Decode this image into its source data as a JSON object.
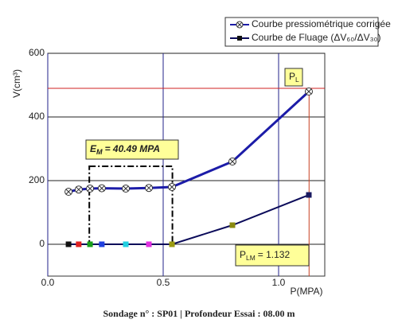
{
  "chart_data": {
    "type": "line",
    "x": [
      0.09,
      0.134,
      0.183,
      0.234,
      0.338,
      0.438,
      0.538,
      0.8,
      1.131
    ],
    "series": [
      {
        "name": "Courbe pressiométrique corrigée",
        "color": "#1c1ca8",
        "values": [
          165,
          172,
          175,
          176,
          175,
          177,
          180,
          260,
          480
        ]
      },
      {
        "name": "Courbe de Fluage (ΔV₆₀/ΔV₃₀)",
        "color": "#0b0b5a",
        "values": [
          0,
          0,
          0,
          0,
          0,
          0,
          0,
          60,
          155
        ],
        "marker_colors": [
          "#111111",
          "#e02020",
          "#1aa01a",
          "#2040e0",
          "#20d0e0",
          "#e030e0",
          "#9a9a10",
          "#8a8a10",
          "#1a1a60"
        ]
      }
    ],
    "xlim": [
      0,
      1.2
    ],
    "ylim": [
      -100,
      600
    ],
    "xticks": [
      {
        "value": 0,
        "label": "0.0"
      },
      0.5,
      {
        "value": 1,
        "label": "1.0"
      }
    ],
    "yticks": [
      0,
      200,
      400,
      600
    ],
    "xlabel": "P(MPA)",
    "ylabel": "V(cm³)",
    "pl_line": 490,
    "plm_line": 1.132,
    "em_box": {
      "x": [
        0.18,
        0.54
      ],
      "y": [
        0,
        245
      ]
    },
    "annotations": {
      "em": {
        "main": "E",
        "sub": "M",
        "rest": "= 40.49 MPA"
      },
      "pl": {
        "main": "P",
        "sub": "L"
      },
      "plm": {
        "main": "P",
        "sub": "LM",
        "rest": "= 1.132"
      }
    },
    "grid": true,
    "footer": "Sondage n° : SP01 | Profondeur Essai : 08.00 m"
  }
}
